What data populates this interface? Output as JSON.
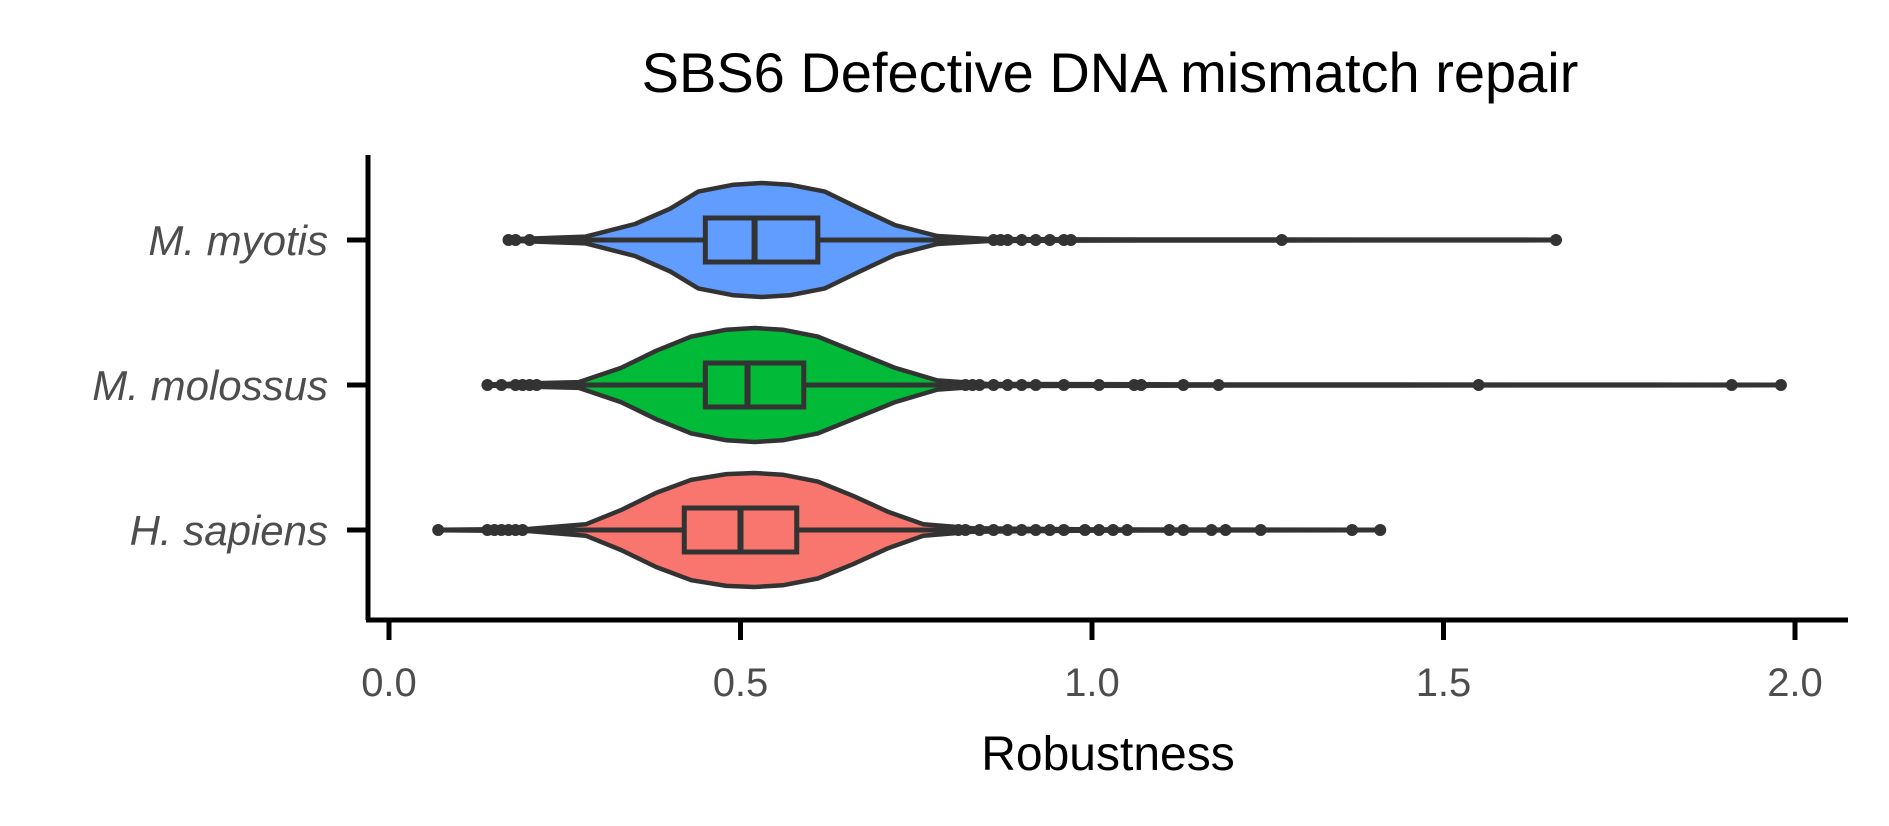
{
  "chart_data": {
    "type": "violin",
    "title": "SBS6 Defective DNA mismatch repair",
    "xlabel": "Robustness",
    "ylabel": "",
    "xlim": [
      -0.03,
      2.07
    ],
    "xticks": [
      0.0,
      0.5,
      1.0,
      1.5,
      2.0
    ],
    "xtick_labels": [
      "0.0",
      "0.5",
      "1.0",
      "1.5",
      "2.0"
    ],
    "grid": false,
    "legend": "none",
    "series": [
      {
        "name": "M. myotis",
        "color": "#619cff",
        "min": 0.17,
        "q1": 0.45,
        "median": 0.52,
        "q3": 0.61,
        "max": 1.66,
        "density": [
          [
            0.17,
            0.01
          ],
          [
            0.28,
            0.06
          ],
          [
            0.35,
            0.28
          ],
          [
            0.4,
            0.55
          ],
          [
            0.44,
            0.85
          ],
          [
            0.49,
            0.97
          ],
          [
            0.53,
            1.0
          ],
          [
            0.57,
            0.97
          ],
          [
            0.62,
            0.85
          ],
          [
            0.67,
            0.55
          ],
          [
            0.72,
            0.26
          ],
          [
            0.78,
            0.07
          ],
          [
            0.85,
            0.02
          ],
          [
            0.97,
            0.01
          ],
          [
            1.66,
            0.005
          ]
        ],
        "outliers": [
          0.17,
          0.18,
          0.2,
          0.86,
          0.87,
          0.88,
          0.9,
          0.92,
          0.94,
          0.96,
          0.97,
          1.27,
          1.66
        ]
      },
      {
        "name": "M. molossus",
        "color": "#00ba38",
        "min": 0.14,
        "q1": 0.45,
        "median": 0.51,
        "q3": 0.59,
        "max": 1.98,
        "density": [
          [
            0.14,
            0.01
          ],
          [
            0.27,
            0.05
          ],
          [
            0.33,
            0.3
          ],
          [
            0.38,
            0.6
          ],
          [
            0.43,
            0.85
          ],
          [
            0.48,
            0.97
          ],
          [
            0.52,
            1.0
          ],
          [
            0.56,
            0.97
          ],
          [
            0.61,
            0.85
          ],
          [
            0.66,
            0.6
          ],
          [
            0.72,
            0.3
          ],
          [
            0.78,
            0.08
          ],
          [
            0.85,
            0.02
          ],
          [
            1.2,
            0.008
          ],
          [
            1.98,
            0.005
          ]
        ],
        "outliers": [
          0.14,
          0.16,
          0.18,
          0.19,
          0.2,
          0.21,
          0.82,
          0.83,
          0.84,
          0.86,
          0.88,
          0.9,
          0.92,
          0.96,
          1.01,
          1.06,
          1.07,
          1.13,
          1.18,
          1.55,
          1.91,
          1.98
        ]
      },
      {
        "name": "H. sapiens",
        "color": "#f8766d",
        "min": 0.07,
        "q1": 0.42,
        "median": 0.5,
        "q3": 0.58,
        "max": 1.41,
        "density": [
          [
            0.07,
            0.005
          ],
          [
            0.2,
            0.02
          ],
          [
            0.28,
            0.1
          ],
          [
            0.33,
            0.35
          ],
          [
            0.38,
            0.65
          ],
          [
            0.43,
            0.88
          ],
          [
            0.48,
            0.98
          ],
          [
            0.52,
            1.0
          ],
          [
            0.56,
            0.97
          ],
          [
            0.61,
            0.85
          ],
          [
            0.66,
            0.6
          ],
          [
            0.71,
            0.32
          ],
          [
            0.76,
            0.1
          ],
          [
            0.83,
            0.03
          ],
          [
            1.0,
            0.01
          ],
          [
            1.41,
            0.005
          ]
        ],
        "outliers": [
          0.07,
          0.14,
          0.15,
          0.16,
          0.17,
          0.18,
          0.19,
          0.81,
          0.82,
          0.84,
          0.86,
          0.88,
          0.9,
          0.92,
          0.94,
          0.96,
          0.99,
          1.01,
          1.03,
          1.05,
          1.11,
          1.13,
          1.17,
          1.19,
          1.24,
          1.37,
          1.41
        ]
      }
    ]
  }
}
